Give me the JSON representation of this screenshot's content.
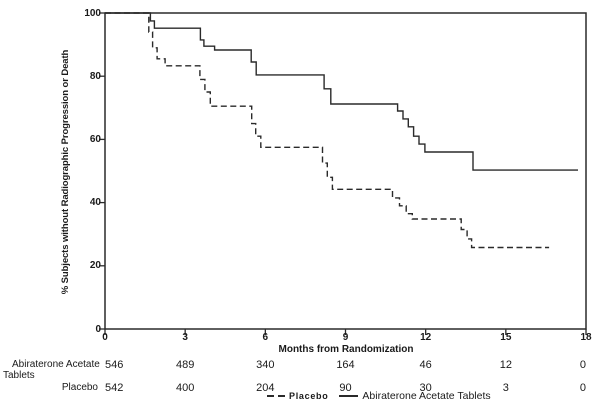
{
  "figure": {
    "background": "#ffffff",
    "line_color": "#2a2a2a"
  },
  "chart_data": {
    "type": "line",
    "subtype": "kaplan-meier-step",
    "title": "",
    "xlabel": "Months from Randomization",
    "ylabel": "% Subjects without Radiographic Progression or Death",
    "xlim": [
      0,
      18
    ],
    "ylim": [
      0,
      100
    ],
    "xticks": [
      0,
      3,
      6,
      9,
      12,
      15,
      18
    ],
    "yticks": [
      0,
      20,
      40,
      60,
      80,
      100
    ],
    "grid": false,
    "legend_position": "bottom",
    "series": [
      {
        "name": "Abiraterone Acetate Tablets",
        "line_style": "solid",
        "color": "#2a2a2a",
        "points": [
          [
            0,
            100
          ],
          [
            1.6,
            100
          ],
          [
            1.7,
            97.5
          ],
          [
            1.85,
            95.2
          ],
          [
            3.44,
            95.2
          ],
          [
            3.57,
            91.5
          ],
          [
            3.7,
            89.5
          ],
          [
            4.1,
            88.3
          ],
          [
            5.3,
            88.3
          ],
          [
            5.47,
            84.5
          ],
          [
            5.66,
            80.4
          ],
          [
            8.03,
            80.4
          ],
          [
            8.2,
            76.0
          ],
          [
            8.45,
            71.2
          ],
          [
            10.78,
            71.2
          ],
          [
            10.95,
            69.0
          ],
          [
            11.15,
            66.5
          ],
          [
            11.35,
            64.0
          ],
          [
            11.55,
            61.0
          ],
          [
            11.75,
            58.5
          ],
          [
            11.97,
            56.0
          ],
          [
            13.63,
            56.0
          ],
          [
            13.77,
            50.3
          ],
          [
            17.7,
            50.3
          ]
        ]
      },
      {
        "name": "Placebo",
        "line_style": "dashed",
        "color": "#2a2a2a",
        "points": [
          [
            0,
            100
          ],
          [
            1.53,
            100
          ],
          [
            1.64,
            94.0
          ],
          [
            1.78,
            89.0
          ],
          [
            1.95,
            85.5
          ],
          [
            2.25,
            83.3
          ],
          [
            3.37,
            83.3
          ],
          [
            3.55,
            79.0
          ],
          [
            3.74,
            75.0
          ],
          [
            3.94,
            70.5
          ],
          [
            5.3,
            70.5
          ],
          [
            5.49,
            65.0
          ],
          [
            5.64,
            61.0
          ],
          [
            5.83,
            57.5
          ],
          [
            7.95,
            57.5
          ],
          [
            8.14,
            52.5
          ],
          [
            8.32,
            48.0
          ],
          [
            8.51,
            44.2
          ],
          [
            10.57,
            44.2
          ],
          [
            10.76,
            41.5
          ],
          [
            11.02,
            39.0
          ],
          [
            11.27,
            36.5
          ],
          [
            11.5,
            34.8
          ],
          [
            13.1,
            34.8
          ],
          [
            13.33,
            31.5
          ],
          [
            13.55,
            28.5
          ],
          [
            13.72,
            25.8
          ],
          [
            16.62,
            25.8
          ]
        ]
      }
    ],
    "legend": [
      {
        "label": "Placebo",
        "marker": "dashed-line"
      },
      {
        "label": "Abiraterone Acetate Tablets",
        "marker": "solid-line"
      }
    ],
    "at_risk_table": {
      "months": [
        0,
        3,
        6,
        9,
        12,
        15,
        18
      ],
      "rows": [
        {
          "label": "Abiraterone Acetate Tablets",
          "label_lines": [
            "Abiraterone Acetate",
            "Tablets"
          ],
          "counts": [
            546,
            489,
            340,
            164,
            46,
            12,
            0
          ]
        },
        {
          "label": "Placebo",
          "label_lines": [
            "Placebo"
          ],
          "counts": [
            542,
            400,
            204,
            90,
            30,
            3,
            0
          ]
        }
      ]
    }
  }
}
